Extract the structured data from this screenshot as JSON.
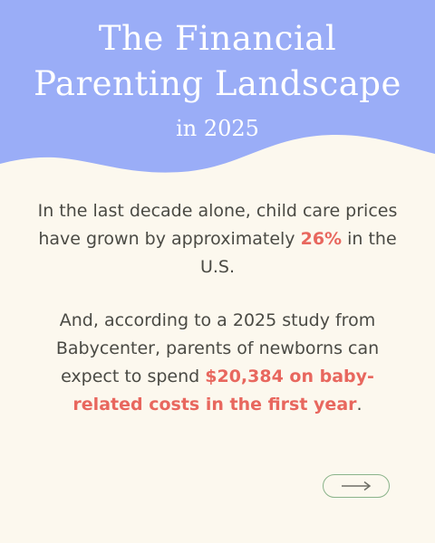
{
  "header": {
    "title_line1": "The Financial",
    "title_line2": "Parenting Landscape",
    "subtitle": "in 2025",
    "color": "#9aadf7"
  },
  "body": {
    "p1_part1": "In the last decade alone, child care prices have grown by approximately ",
    "p1_highlight": "26%",
    "p1_part2": " in the U.S.",
    "p2_part1": "And, according to a 2025 study from Babycenter, parents of newborns can expect to spend ",
    "p2_highlight": "$20,384 on baby-related costs in the first year",
    "p2_part2": "."
  },
  "colors": {
    "background": "#fcf8ee",
    "highlight": "#e8675e",
    "text": "#4a4a44",
    "button_border": "#8ab38a"
  },
  "next_button": {
    "icon": "arrow-right-icon"
  }
}
